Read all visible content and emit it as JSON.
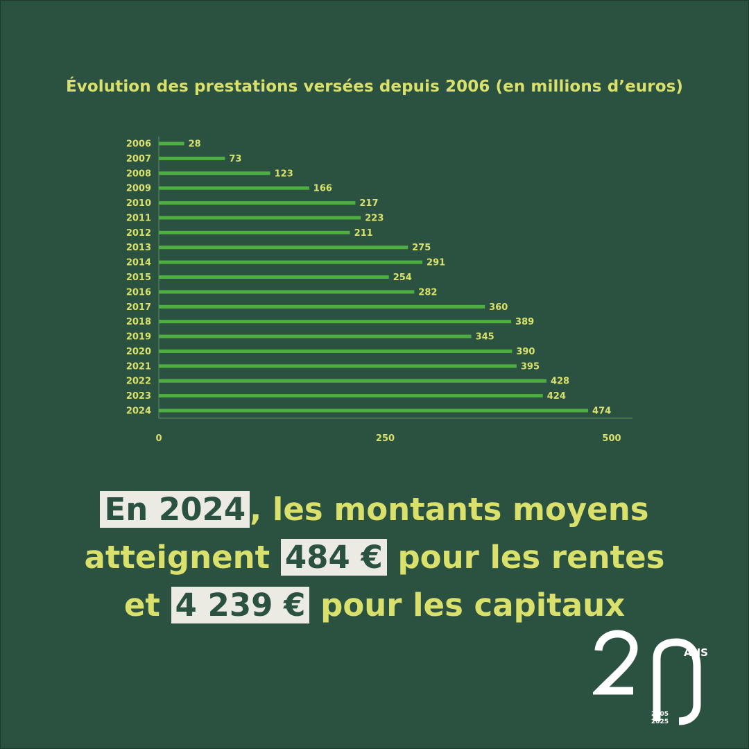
{
  "chart_data": {
    "type": "bar",
    "orientation": "horizontal",
    "title": "Évolution des prestations versées depuis 2006 (en millions d’euros)",
    "categories": [
      "2006",
      "2007",
      "2008",
      "2009",
      "2010",
      "2011",
      "2012",
      "2013",
      "2014",
      "2015",
      "2016",
      "2017",
      "2018",
      "2019",
      "2020",
      "2021",
      "2022",
      "2023",
      "2024"
    ],
    "values": [
      28,
      73,
      123,
      166,
      217,
      223,
      211,
      275,
      291,
      254,
      282,
      360,
      389,
      345,
      390,
      395,
      428,
      424,
      474
    ],
    "xlim": [
      0,
      500
    ],
    "xticks": [
      "0",
      "250",
      "500"
    ],
    "grid": false,
    "legend": "none",
    "colors": {
      "bar": "#4fae42",
      "label": "#d9e16c",
      "axis": "#5f8f62"
    }
  },
  "headline": {
    "line1_highlight": "En 2024",
    "line1_rest": ", les montants moyens",
    "line2_start": "atteignent ",
    "line2_highlight": "484 €",
    "line2_end": " pour les rentes",
    "line3_start": "et ",
    "line3_highlight": "4 239 €",
    "line3_end": " pour les capitaux"
  },
  "logo": {
    "label": "ANS",
    "year_start": "2005",
    "year_end": "2025"
  }
}
